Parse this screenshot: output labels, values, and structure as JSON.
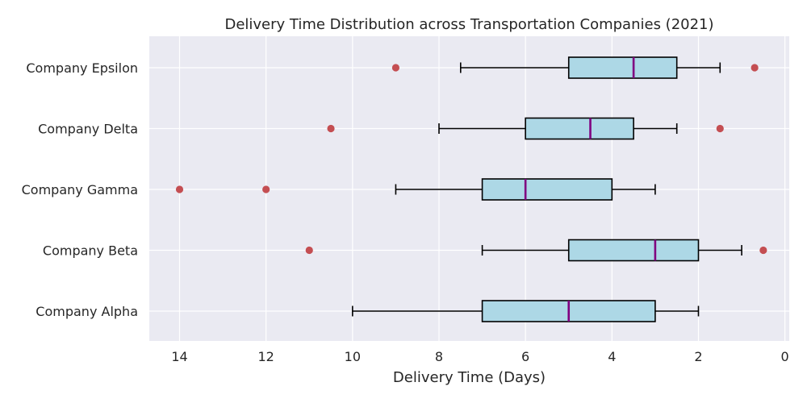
{
  "chart_data": {
    "type": "boxplot",
    "title": "Delivery Time Distribution across Transportation Companies (2021)",
    "xlabel": "Delivery Time (Days)",
    "ylabel": "",
    "x_axis_inverted": true,
    "xlim": [
      14.7,
      -0.1
    ],
    "xticks": [
      14,
      12,
      10,
      8,
      6,
      4,
      2,
      0
    ],
    "grid": true,
    "colors": {
      "background": "#eaeaf2",
      "grid": "#ffffff",
      "box_fill": "#add8e6",
      "box_edge": "#000000",
      "median": "#800080",
      "whisker": "#000000",
      "outlier": "#c44e52"
    },
    "categories": [
      "Company Alpha",
      "Company Beta",
      "Company Gamma",
      "Company Delta",
      "Company Epsilon"
    ],
    "boxes": [
      {
        "label": "Company Alpha",
        "whislo": 2,
        "q1": 3,
        "med": 5,
        "q3": 7,
        "whishi": 10,
        "fliers": []
      },
      {
        "label": "Company Beta",
        "whislo": 1,
        "q1": 2,
        "med": 3,
        "q3": 5,
        "whishi": 7,
        "fliers": [
          11,
          0.5
        ]
      },
      {
        "label": "Company Gamma",
        "whislo": 3,
        "q1": 4,
        "med": 6,
        "q3": 7,
        "whishi": 9,
        "fliers": [
          14,
          12
        ]
      },
      {
        "label": "Company Delta",
        "whislo": 2.5,
        "q1": 3.5,
        "med": 4.5,
        "q3": 6,
        "whishi": 8,
        "fliers": [
          10.5,
          1.5
        ]
      },
      {
        "label": "Company Epsilon",
        "whislo": 1.5,
        "q1": 2.5,
        "med": 3.5,
        "q3": 5,
        "whishi": 7.5,
        "fliers": [
          9,
          0.7
        ]
      }
    ]
  }
}
